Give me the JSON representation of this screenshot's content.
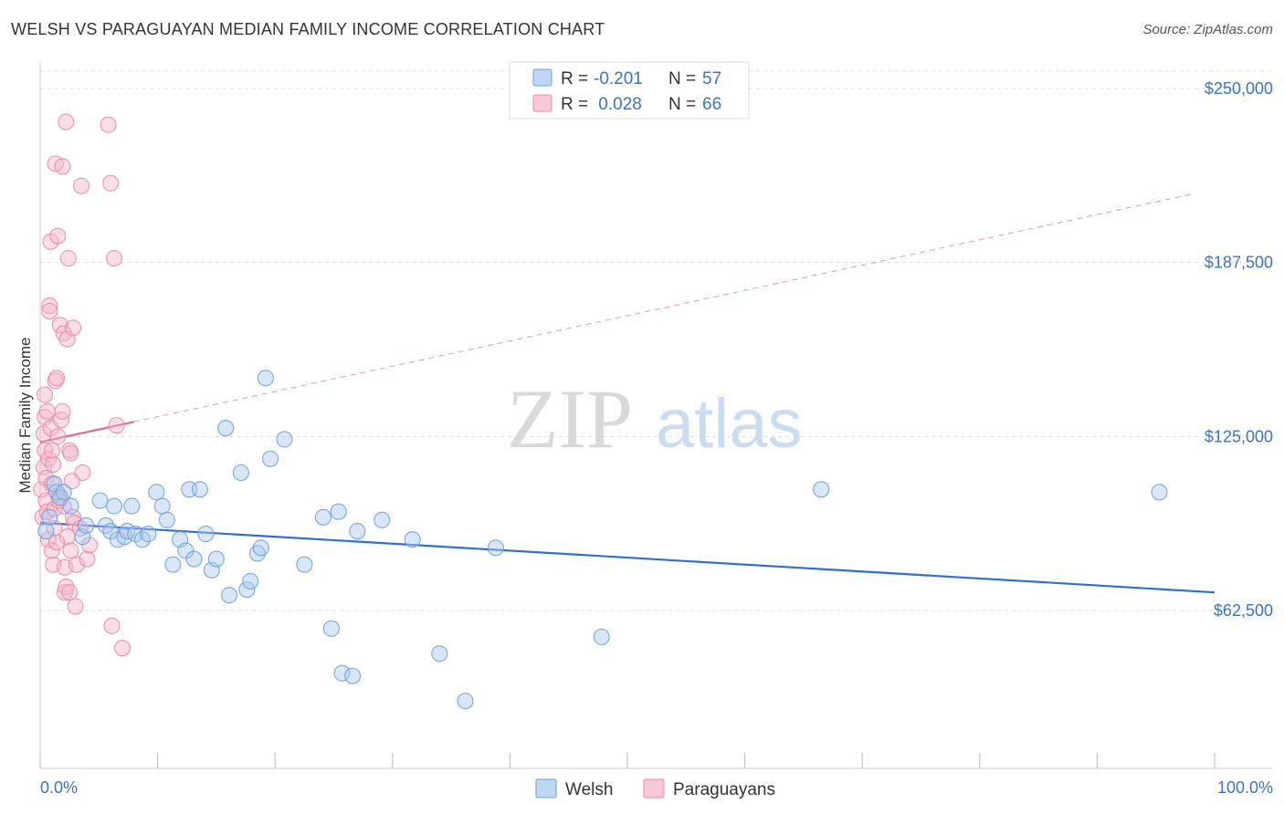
{
  "header": {
    "title": "WELSH VS PARAGUAYAN MEDIAN FAMILY INCOME CORRELATION CHART",
    "source": "Source: ZipAtlas.com"
  },
  "watermark": {
    "zip": "ZIP",
    "atlas": "atlas"
  },
  "colors": {
    "welsh_fill": "#a9c8f0",
    "welsh_stroke": "#6f9fdc",
    "welsh_line": "#2f6fcf",
    "paraguayan_fill": "#f5b5c8",
    "paraguayan_stroke": "#e98aa8",
    "paraguayan_line": "#e26790",
    "grid": "#dddddd",
    "axis_text": "#3a73c4"
  },
  "legend": {
    "rows": [
      {
        "r_label": "R = ",
        "r_value": "-0.201",
        "n_label": "N = ",
        "n_value": "57"
      },
      {
        "r_label": "R = ",
        "r_value": " 0.028",
        "n_label": "N = ",
        "n_value": "66"
      }
    ]
  },
  "chart_data": {
    "type": "scatter",
    "title": "WELSH VS PARAGUAYAN MEDIAN FAMILY INCOME CORRELATION CHART",
    "xlabel": "",
    "ylabel": "Median Family Income",
    "xlim": [
      0,
      100
    ],
    "ylim": [
      0,
      262500
    ],
    "x_tick_labels": [
      "0.0%",
      "100.0%"
    ],
    "y_ticks": [
      62500,
      125000,
      187500,
      250000
    ],
    "y_tick_labels": [
      "$62,500",
      "$125,000",
      "$187,500",
      "$250,000"
    ],
    "grid": true,
    "legend_position": "bottom-center",
    "series": [
      {
        "name": "Welsh",
        "trend": {
          "x0": 0,
          "y0": 94000,
          "x1": 100,
          "y1": 69000,
          "solid_until": 100
        },
        "points": [
          [
            0.5,
            91000
          ],
          [
            0.8,
            96000
          ],
          [
            1.2,
            108000
          ],
          [
            1.4,
            105000
          ],
          [
            1.7,
            103000
          ],
          [
            2.0,
            105000
          ],
          [
            2.6,
            100000
          ],
          [
            3.6,
            89000
          ],
          [
            3.9,
            93000
          ],
          [
            5.1,
            102000
          ],
          [
            5.6,
            93000
          ],
          [
            6.0,
            91000
          ],
          [
            6.3,
            100000
          ],
          [
            6.6,
            88000
          ],
          [
            7.2,
            89000
          ],
          [
            7.4,
            91000
          ],
          [
            7.8,
            100000
          ],
          [
            8.1,
            90000
          ],
          [
            8.7,
            88000
          ],
          [
            9.2,
            90000
          ],
          [
            9.9,
            105000
          ],
          [
            10.4,
            100000
          ],
          [
            10.8,
            95000
          ],
          [
            11.3,
            79000
          ],
          [
            11.9,
            88000
          ],
          [
            12.4,
            84000
          ],
          [
            12.7,
            106000
          ],
          [
            13.1,
            81000
          ],
          [
            13.6,
            106000
          ],
          [
            14.1,
            90000
          ],
          [
            14.6,
            77000
          ],
          [
            15.0,
            81000
          ],
          [
            15.8,
            128000
          ],
          [
            16.1,
            68000
          ],
          [
            17.1,
            112000
          ],
          [
            17.6,
            70000
          ],
          [
            17.9,
            73000
          ],
          [
            18.5,
            83000
          ],
          [
            18.8,
            85000
          ],
          [
            19.2,
            146000
          ],
          [
            19.6,
            117000
          ],
          [
            20.8,
            124000
          ],
          [
            22.5,
            79000
          ],
          [
            24.1,
            96000
          ],
          [
            24.8,
            56000
          ],
          [
            25.4,
            98000
          ],
          [
            25.7,
            40000
          ],
          [
            26.6,
            39000
          ],
          [
            27.0,
            91000
          ],
          [
            29.1,
            95000
          ],
          [
            31.7,
            88000
          ],
          [
            34.0,
            47000
          ],
          [
            36.2,
            30000
          ],
          [
            38.8,
            85000
          ],
          [
            47.8,
            53000
          ],
          [
            66.5,
            106000
          ],
          [
            95.3,
            105000
          ]
        ]
      },
      {
        "name": "Paraguayans",
        "trend": {
          "x0": 0,
          "y0": 123000,
          "x1": 98,
          "y1": 212000,
          "solid_until": 8.0
        },
        "points": [
          [
            0.1,
            106000
          ],
          [
            0.2,
            96000
          ],
          [
            0.3,
            126000
          ],
          [
            0.3,
            114000
          ],
          [
            0.4,
            132000
          ],
          [
            0.4,
            120000
          ],
          [
            0.5,
            110000
          ],
          [
            0.5,
            102000
          ],
          [
            0.6,
            98000
          ],
          [
            0.7,
            88000
          ],
          [
            0.7,
            117000
          ],
          [
            0.8,
            172000
          ],
          [
            0.8,
            170000
          ],
          [
            0.9,
            128000
          ],
          [
            0.9,
            195000
          ],
          [
            1.0,
            108000
          ],
          [
            1.0,
            84000
          ],
          [
            1.1,
            115000
          ],
          [
            1.1,
            79000
          ],
          [
            1.2,
            99000
          ],
          [
            1.2,
            92000
          ],
          [
            1.3,
            223000
          ],
          [
            1.3,
            145000
          ],
          [
            1.4,
            146000
          ],
          [
            1.5,
            197000
          ],
          [
            1.5,
            125000
          ],
          [
            1.6,
            104000
          ],
          [
            1.7,
            165000
          ],
          [
            1.8,
            131000
          ],
          [
            1.9,
            222000
          ],
          [
            1.9,
            134000
          ],
          [
            2.0,
            162000
          ],
          [
            2.0,
            100000
          ],
          [
            2.1,
            69000
          ],
          [
            2.1,
            78000
          ],
          [
            2.2,
            71000
          ],
          [
            2.2,
            238000
          ],
          [
            2.3,
            160000
          ],
          [
            2.3,
            89000
          ],
          [
            2.4,
            189000
          ],
          [
            2.5,
            120000
          ],
          [
            2.5,
            69000
          ],
          [
            2.6,
            84000
          ],
          [
            2.7,
            109000
          ],
          [
            2.8,
            164000
          ],
          [
            2.8,
            96000
          ],
          [
            3.0,
            64000
          ],
          [
            3.1,
            79000
          ],
          [
            3.5,
            215000
          ],
          [
            3.6,
            112000
          ],
          [
            4.0,
            81000
          ],
          [
            4.2,
            86000
          ],
          [
            5.8,
            237000
          ],
          [
            6.0,
            216000
          ],
          [
            6.3,
            189000
          ],
          [
            6.5,
            129000
          ],
          [
            6.1,
            57000
          ],
          [
            7.0,
            49000
          ],
          [
            1.6,
            102000
          ],
          [
            0.6,
            134000
          ],
          [
            1.4,
            87000
          ],
          [
            2.9,
            94000
          ],
          [
            1.0,
            120000
          ],
          [
            0.4,
            140000
          ],
          [
            2.6,
            119000
          ],
          [
            3.4,
            92000
          ]
        ]
      }
    ]
  }
}
